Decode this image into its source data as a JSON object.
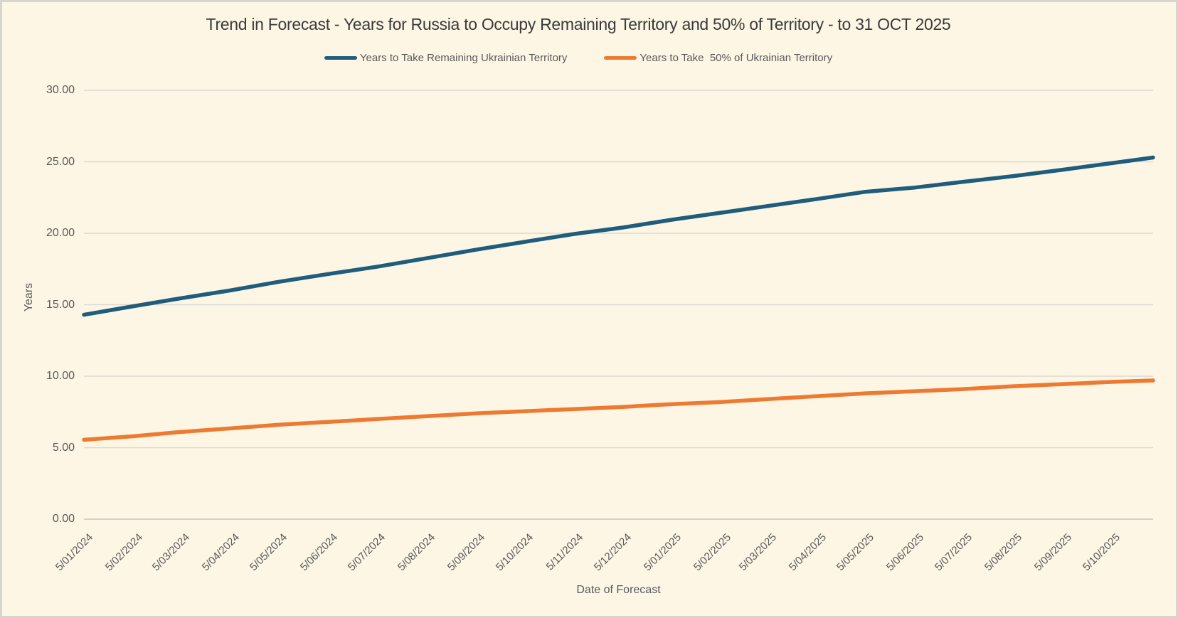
{
  "axes": {
    "y_title": "Years",
    "x_title": "Date of Forecast",
    "y_ticks": [
      "30.00",
      "25.00",
      "20.00",
      "15.00",
      "10.00",
      "5.00",
      "0.00"
    ]
  },
  "colors": {
    "background": "#FDF6E4",
    "frame_border": "#D8D5CE",
    "gridline": "#DBD9D2",
    "axis_line": "#C9C6BF",
    "text": "#595959",
    "title_text": "#3A3A3A"
  },
  "chart_data": {
    "type": "line",
    "title": "Trend in Forecast - Years for Russia to Occupy Remaining Territory and 50% of Territory - to 31 OCT 2025",
    "xlabel": "Date of Forecast",
    "ylabel": "Years",
    "ylim": [
      0,
      30
    ],
    "grid": true,
    "legend_position": "top",
    "x_tick_labels": [
      "5/01/2024",
      "5/02/2024",
      "5/03/2024",
      "5/04/2024",
      "5/05/2024",
      "5/06/2024",
      "5/07/2024",
      "5/08/2024",
      "5/09/2024",
      "5/10/2024",
      "5/11/2024",
      "5/12/2024",
      "5/01/2025",
      "5/02/2025",
      "5/03/2025",
      "5/04/2025",
      "5/05/2025",
      "5/06/2025",
      "5/07/2025",
      "5/08/2025",
      "5/09/2025",
      "5/10/2025"
    ],
    "dates": [
      "5/01/2024",
      "5/02/2024",
      "5/03/2024",
      "5/04/2024",
      "5/05/2024",
      "5/06/2024",
      "5/07/2024",
      "5/08/2024",
      "5/09/2024",
      "5/10/2024",
      "5/11/2024",
      "5/12/2024",
      "5/01/2025",
      "5/02/2025",
      "5/03/2025",
      "5/04/2025",
      "5/05/2025",
      "5/06/2025",
      "5/07/2025",
      "5/08/2025",
      "5/09/2025",
      "5/10/2025",
      "31/10/2025"
    ],
    "series": [
      {
        "name": "Years to Take Remaining Ukrainian Territory",
        "color": "#1F5D7D",
        "values": [
          14.3,
          14.9,
          15.45,
          16.0,
          16.6,
          17.15,
          17.65,
          18.25,
          18.85,
          19.4,
          19.95,
          20.4,
          20.95,
          21.45,
          21.9,
          22.4,
          22.9,
          23.2,
          23.6,
          24.0,
          24.45,
          24.9,
          25.3
        ]
      },
      {
        "name": "Years to Take  50% of Ukrainian Territory",
        "color": "#ED7A30",
        "values": [
          5.55,
          5.8,
          6.1,
          6.35,
          6.6,
          6.8,
          7.0,
          7.2,
          7.4,
          7.55,
          7.7,
          7.85,
          8.05,
          8.2,
          8.4,
          8.6,
          8.8,
          8.95,
          9.1,
          9.3,
          9.45,
          9.6,
          9.7
        ]
      }
    ]
  }
}
